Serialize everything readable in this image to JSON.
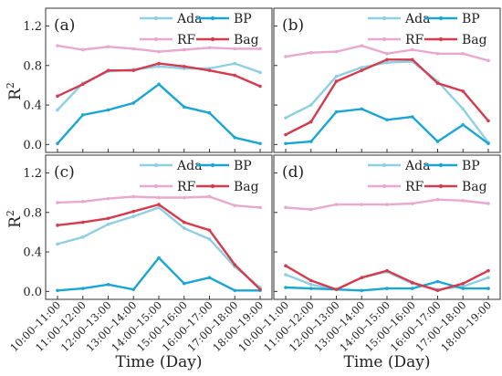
{
  "chart_data": {
    "type": "line",
    "x_categories": [
      "10:00–11:00",
      "11:00–12:00",
      "12:00–13:00",
      "13:00–14:00",
      "14:00–15:00",
      "15:00–16:00",
      "16:00–17:00",
      "17:00–18:00",
      "18:00–19:00"
    ],
    "xlabel": "Time (Day)",
    "ylabel": "R",
    "ylabel_sup": "2",
    "ylim": [
      -0.08,
      1.38
    ],
    "yticks": [
      "0.0",
      "0.4",
      "0.8",
      "1.2"
    ],
    "ytick_values": [
      0.0,
      0.4,
      0.8,
      1.2
    ],
    "series_styles": {
      "Ada": {
        "color": "#8ecfe3"
      },
      "BP": {
        "color": "#1aa6d4"
      },
      "RF": {
        "color": "#e8a8cf"
      },
      "Bag": {
        "color": "#d63a4e"
      }
    },
    "panels": [
      {
        "label": "(a)",
        "series": [
          {
            "name": "Ada",
            "values": [
              0.35,
              0.62,
              0.74,
              0.76,
              0.79,
              0.77,
              0.77,
              0.82,
              0.73
            ]
          },
          {
            "name": "BP",
            "values": [
              0.01,
              0.3,
              0.35,
              0.42,
              0.61,
              0.38,
              0.32,
              0.07,
              0.01
            ]
          },
          {
            "name": "RF",
            "values": [
              1.0,
              0.96,
              0.99,
              0.97,
              0.94,
              0.96,
              0.98,
              0.97,
              0.97
            ]
          },
          {
            "name": "Bag",
            "values": [
              0.49,
              0.61,
              0.75,
              0.75,
              0.82,
              0.79,
              0.75,
              0.7,
              0.59
            ]
          }
        ]
      },
      {
        "label": "(b)",
        "series": [
          {
            "name": "Ada",
            "values": [
              0.27,
              0.4,
              0.69,
              0.78,
              0.83,
              0.84,
              0.64,
              0.36,
              0.02
            ]
          },
          {
            "name": "BP",
            "values": [
              0.01,
              0.03,
              0.33,
              0.36,
              0.25,
              0.28,
              0.03,
              0.2,
              0.01
            ]
          },
          {
            "name": "RF",
            "values": [
              0.89,
              0.93,
              0.94,
              1.0,
              0.92,
              0.96,
              0.92,
              0.92,
              0.85
            ]
          },
          {
            "name": "Bag",
            "values": [
              0.1,
              0.23,
              0.64,
              0.75,
              0.86,
              0.86,
              0.62,
              0.54,
              0.24
            ]
          }
        ]
      },
      {
        "label": "(c)",
        "series": [
          {
            "name": "Ada",
            "values": [
              0.48,
              0.55,
              0.68,
              0.76,
              0.85,
              0.64,
              0.53,
              0.25,
              0.04
            ]
          },
          {
            "name": "BP",
            "values": [
              0.01,
              0.03,
              0.07,
              0.02,
              0.34,
              0.08,
              0.14,
              0.01,
              0.01
            ]
          },
          {
            "name": "RF",
            "values": [
              0.9,
              0.91,
              0.94,
              0.96,
              0.95,
              0.95,
              0.96,
              0.87,
              0.85
            ]
          },
          {
            "name": "Bag",
            "values": [
              0.67,
              0.7,
              0.74,
              0.81,
              0.88,
              0.7,
              0.62,
              0.27,
              0.02
            ]
          }
        ]
      },
      {
        "label": "(d)",
        "series": [
          {
            "name": "Ada",
            "values": [
              0.17,
              0.07,
              0.02,
              0.14,
              0.2,
              0.08,
              0.02,
              0.05,
              0.14
            ]
          },
          {
            "name": "BP",
            "values": [
              0.04,
              0.03,
              0.02,
              0.01,
              0.03,
              0.03,
              0.1,
              0.03,
              0.03
            ]
          },
          {
            "name": "RF",
            "values": [
              0.85,
              0.83,
              0.88,
              0.88,
              0.88,
              0.89,
              0.93,
              0.92,
              0.89
            ]
          },
          {
            "name": "Bag",
            "values": [
              0.26,
              0.11,
              0.02,
              0.14,
              0.21,
              0.09,
              0.01,
              0.08,
              0.21
            ]
          }
        ]
      }
    ],
    "legend_placement": "top-right",
    "legend_order": [
      "Ada",
      "BP",
      "RF",
      "Bag"
    ],
    "grid": false
  }
}
